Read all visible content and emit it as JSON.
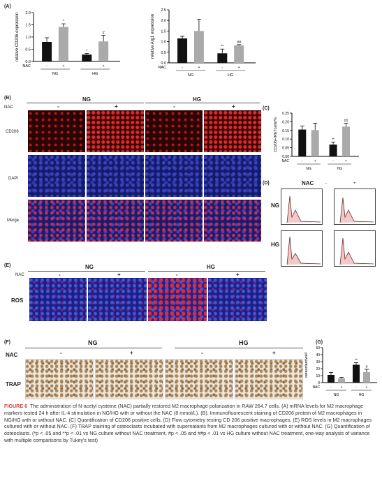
{
  "panels": {
    "A": "(A)",
    "B": "(B)",
    "C": "(C)",
    "D": "(D)",
    "E": "(E)",
    "F": "(F)",
    "G": "(G)"
  },
  "chartA1": {
    "ylabel": "relative CD206 expression",
    "yticks": [
      "0.0",
      "0.5",
      "1.0",
      "1.5",
      "2.0"
    ],
    "bars": [
      {
        "v": 0.8,
        "e": 0.17,
        "sig": ""
      },
      {
        "v": 1.41,
        "e": 0.13,
        "sig": "*"
      },
      {
        "v": 0.28,
        "e": 0.05,
        "sig": "*"
      },
      {
        "v": 0.82,
        "e": 0.25,
        "sig": "#"
      }
    ],
    "nac": [
      "-",
      "+",
      "-",
      "+"
    ],
    "groups": [
      "NG",
      "HG"
    ]
  },
  "chartA2": {
    "ylabel": "relative Arg1 expression",
    "yticks": [
      "0.0",
      "0.5",
      "1.0",
      "1.5",
      "2.0",
      "2.5"
    ],
    "bars": [
      {
        "v": 1.15,
        "e": 0.1,
        "sig": ""
      },
      {
        "v": 1.5,
        "e": 0.55,
        "sig": ""
      },
      {
        "v": 0.45,
        "e": 0.2,
        "sig": "**"
      },
      {
        "v": 0.82,
        "e": 0.04,
        "sig": "##"
      }
    ],
    "nac": [
      "-",
      "+",
      "-",
      "+"
    ],
    "groups": [
      "NG",
      "HG"
    ]
  },
  "chartC": {
    "ylabel": "CD206+/RE7cells/%",
    "yticks": [
      "0.00",
      "0.05",
      "0.10",
      "0.15",
      "0.20",
      "0.25"
    ],
    "bars": [
      {
        "v": 0.155,
        "e": 0.02,
        "sig": ""
      },
      {
        "v": 0.152,
        "e": 0.04,
        "sig": ""
      },
      {
        "v": 0.068,
        "e": 0.015,
        "sig": "**"
      },
      {
        "v": 0.172,
        "e": 0.02,
        "sig": "##"
      }
    ],
    "nac": [
      "-",
      "+",
      "-",
      "+"
    ],
    "groups": [
      "NG",
      "HG"
    ]
  },
  "chartG": {
    "ylabel": "osteoclast/well",
    "yticks": [
      "0",
      "10",
      "20",
      "30",
      "40",
      "50"
    ],
    "bars": [
      {
        "v": 11,
        "e": 3.5,
        "sig": ""
      },
      {
        "v": 6,
        "e": 1.5,
        "sig": ""
      },
      {
        "v": 25.5,
        "e": 3,
        "sig": "**"
      },
      {
        "v": 15,
        "e": 4,
        "sig": "#"
      }
    ],
    "nac": [
      "-",
      "+",
      "-",
      "+"
    ],
    "groups": [
      "NG",
      "HG"
    ]
  },
  "nac_label": "NAC",
  "minus": "-",
  "plus": "+",
  "ng": "NG",
  "hg": "HG",
  "rows_b": [
    "CD206",
    "DAPI",
    "Merge"
  ],
  "row_e": "ROS",
  "row_f": "TRAP",
  "caption_fig": "FIGURE 6",
  "caption_text": "The administration of N-acetyl cysteine (NAC) partially restored M2 macrophage polarization in RAW 264.7 cells. (A) mRNA levels for M2 macrophage markers tested 24 h after IL-4 stimulation in NG/HG with or without the NAC (8 mmol/L). (B). Immunofluorescent staining of CD206 protein of M2 macrophages in NG/HG with or without NAC. (C) Quantification of CD206 positive cells. (D) Flow cytometry testing CD 206 positive macrophages. (E) ROS levels in M2 macrophages cultured with or without NAC. (F) TRAP staining of osteoclasts incubated with supernatants from M2 macrophages cultured with or without NAC. (G) Quantification of osteoclasts. (*p < .05 and **p < .01 vs NG culture without NAC treatment, #p < .05 and ##p < .01 vs HG culture without NAC treatment, one-way analysis of variance with multiple comparisons by Tukey's test)",
  "chart_data": [
    {
      "type": "bar",
      "ylabel": "relative CD206 expression",
      "categories": [
        "NG -",
        "NG +",
        "HG -",
        "HG +"
      ],
      "values": [
        0.8,
        1.41,
        0.28,
        0.82
      ],
      "ylim": [
        0,
        2
      ]
    },
    {
      "type": "bar",
      "ylabel": "relative Arg1 expression",
      "categories": [
        "NG -",
        "NG +",
        "HG -",
        "HG +"
      ],
      "values": [
        1.15,
        1.5,
        0.45,
        0.82
      ],
      "ylim": [
        0,
        2.5
      ]
    },
    {
      "type": "bar",
      "ylabel": "CD206+/RE7cells/%",
      "categories": [
        "NG -",
        "NG +",
        "HG -",
        "HG +"
      ],
      "values": [
        0.155,
        0.152,
        0.068,
        0.172
      ],
      "ylim": [
        0,
        0.25
      ]
    },
    {
      "type": "bar",
      "ylabel": "osteoclast/well",
      "categories": [
        "NG -",
        "NG +",
        "HG -",
        "HG +"
      ],
      "values": [
        11,
        6,
        25.5,
        15
      ],
      "ylim": [
        0,
        50
      ]
    }
  ]
}
